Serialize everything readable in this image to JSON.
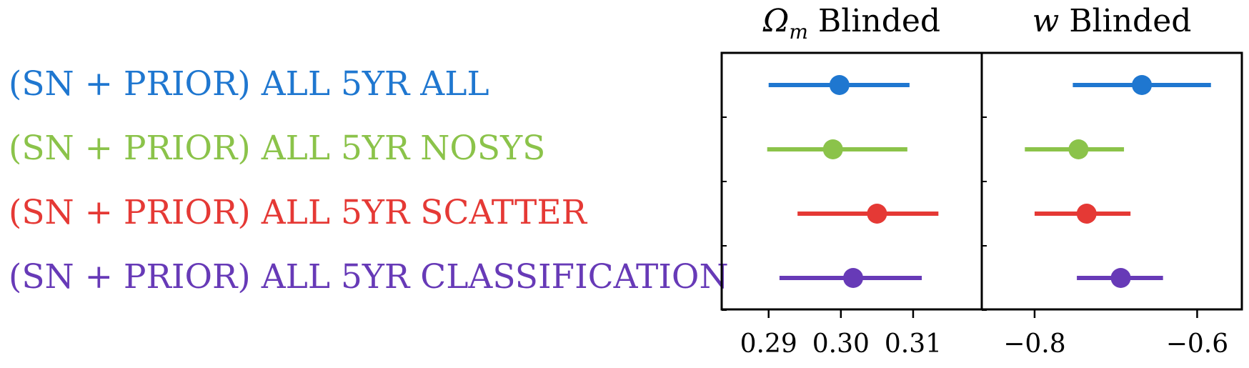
{
  "chart_data": {
    "type": "forest",
    "rows": [
      {
        "label": "(SN + PRIOR) ALL 5YR ALL",
        "color": "#1f77d0"
      },
      {
        "label": "(SN + PRIOR) ALL 5YR NOSYS",
        "color": "#8bc34a"
      },
      {
        "label": "(SN + PRIOR) ALL 5YR SCATTER",
        "color": "#e53935"
      },
      {
        "label": "(SN + PRIOR) ALL 5YR CLASSIFICATION",
        "color": "#673ab7"
      }
    ],
    "panels": [
      {
        "title_symbol": "Ω",
        "title_sub": "m",
        "title_text": " Blinded",
        "xlim": [
          0.2835,
          0.3195
        ],
        "xticks": [
          0.29,
          0.3,
          0.31
        ],
        "xtick_labels": [
          "0.29",
          "0.30",
          "0.31"
        ],
        "points": [
          {
            "center": 0.2998,
            "low": 0.29,
            "high": 0.3095
          },
          {
            "center": 0.2989,
            "low": 0.2898,
            "high": 0.3092
          },
          {
            "center": 0.305,
            "low": 0.294,
            "high": 0.3135
          },
          {
            "center": 0.3017,
            "low": 0.2915,
            "high": 0.3112
          }
        ]
      },
      {
        "title_symbol": "w",
        "title_sub": "",
        "title_text": " Blinded",
        "xlim": [
          -0.865,
          -0.545
        ],
        "xticks": [
          -0.8,
          -0.6
        ],
        "xtick_labels": [
          "−0.8",
          "−0.6"
        ],
        "points": [
          {
            "center": -0.668,
            "low": -0.753,
            "high": -0.583
          },
          {
            "center": -0.746,
            "low": -0.812,
            "high": -0.69
          },
          {
            "center": -0.736,
            "low": -0.8,
            "high": -0.682
          },
          {
            "center": -0.694,
            "low": -0.748,
            "high": -0.642
          }
        ]
      }
    ]
  }
}
